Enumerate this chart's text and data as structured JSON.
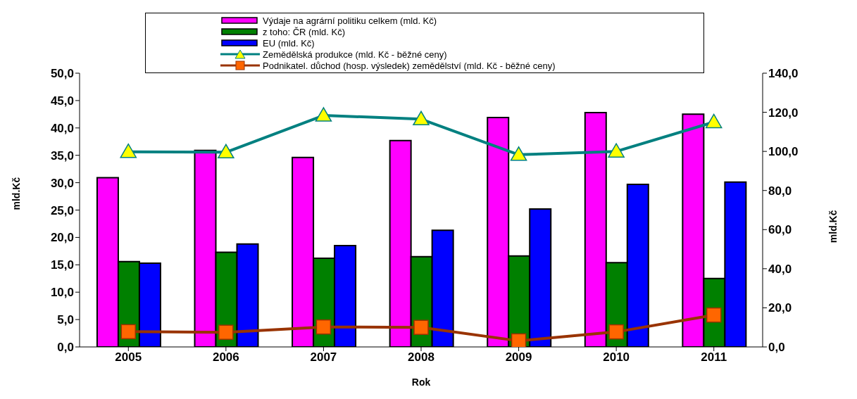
{
  "chart_data": {
    "type": "bar",
    "xlabel": "Rok",
    "ylabel": "mld.Kč",
    "y2label": "mld.Kč",
    "categories": [
      "2005",
      "2006",
      "2007",
      "2008",
      "2009",
      "2010",
      "2011"
    ],
    "series": [
      {
        "name": "Výdaje na agrární politiku celkem (mld. Kč)",
        "color": "#ff00ff",
        "values": [
          30.9,
          35.9,
          34.6,
          37.7,
          41.9,
          42.8,
          42.5
        ]
      },
      {
        "name": "z toho:  ČR (mld. Kč)",
        "color": "#008000",
        "values": [
          15.6,
          17.3,
          16.2,
          16.5,
          16.6,
          15.4,
          12.5
        ]
      },
      {
        "name": "EU (mld. Kč)",
        "color": "#0000ff",
        "values": [
          15.3,
          18.8,
          18.5,
          21.3,
          25.2,
          29.7,
          30.1
        ]
      },
      {
        "name": "Zemědělská produkce (mld. Kč - běžné ceny)",
        "type": "line",
        "axis": "y2",
        "color": "#008080",
        "marker": "triangle",
        "values": [
          99.8,
          99.6,
          118.4,
          116.5,
          98.3,
          100.0,
          115.0
        ]
      },
      {
        "name": "Podnikatel. důchod (hosp. výsledek) zemědělství (mld. Kč - běžné ceny)",
        "type": "line",
        "axis": "y2",
        "color": "#993300",
        "marker": "square",
        "values": [
          7.8,
          7.5,
          10.2,
          10.0,
          3.1,
          7.7,
          16.3
        ]
      }
    ],
    "ylim": [
      0,
      50
    ],
    "yticks": [
      {
        "value": 0,
        "label": "0,0"
      },
      {
        "value": 5,
        "label": "5,0"
      },
      {
        "value": 10,
        "label": "10,0"
      },
      {
        "value": 15,
        "label": "15,0"
      },
      {
        "value": 20,
        "label": "20,0"
      },
      {
        "value": 25,
        "label": "25,0"
      },
      {
        "value": 30,
        "label": "30,0"
      },
      {
        "value": 35,
        "label": "35,0"
      },
      {
        "value": 40,
        "label": "40,0"
      },
      {
        "value": 45,
        "label": "45,0"
      },
      {
        "value": 50,
        "label": "50,0"
      }
    ],
    "y2lim": [
      0,
      140
    ],
    "y2ticks": [
      {
        "value": 0,
        "label": "0,0"
      },
      {
        "value": 20,
        "label": "20,0"
      },
      {
        "value": 40,
        "label": "40,0"
      },
      {
        "value": 60,
        "label": "60,0"
      },
      {
        "value": 80,
        "label": "80,0"
      },
      {
        "value": 100,
        "label": "100,0"
      },
      {
        "value": 120,
        "label": "120,0"
      },
      {
        "value": 140,
        "label": "140,0"
      }
    ],
    "grid": false,
    "legend": "top"
  }
}
